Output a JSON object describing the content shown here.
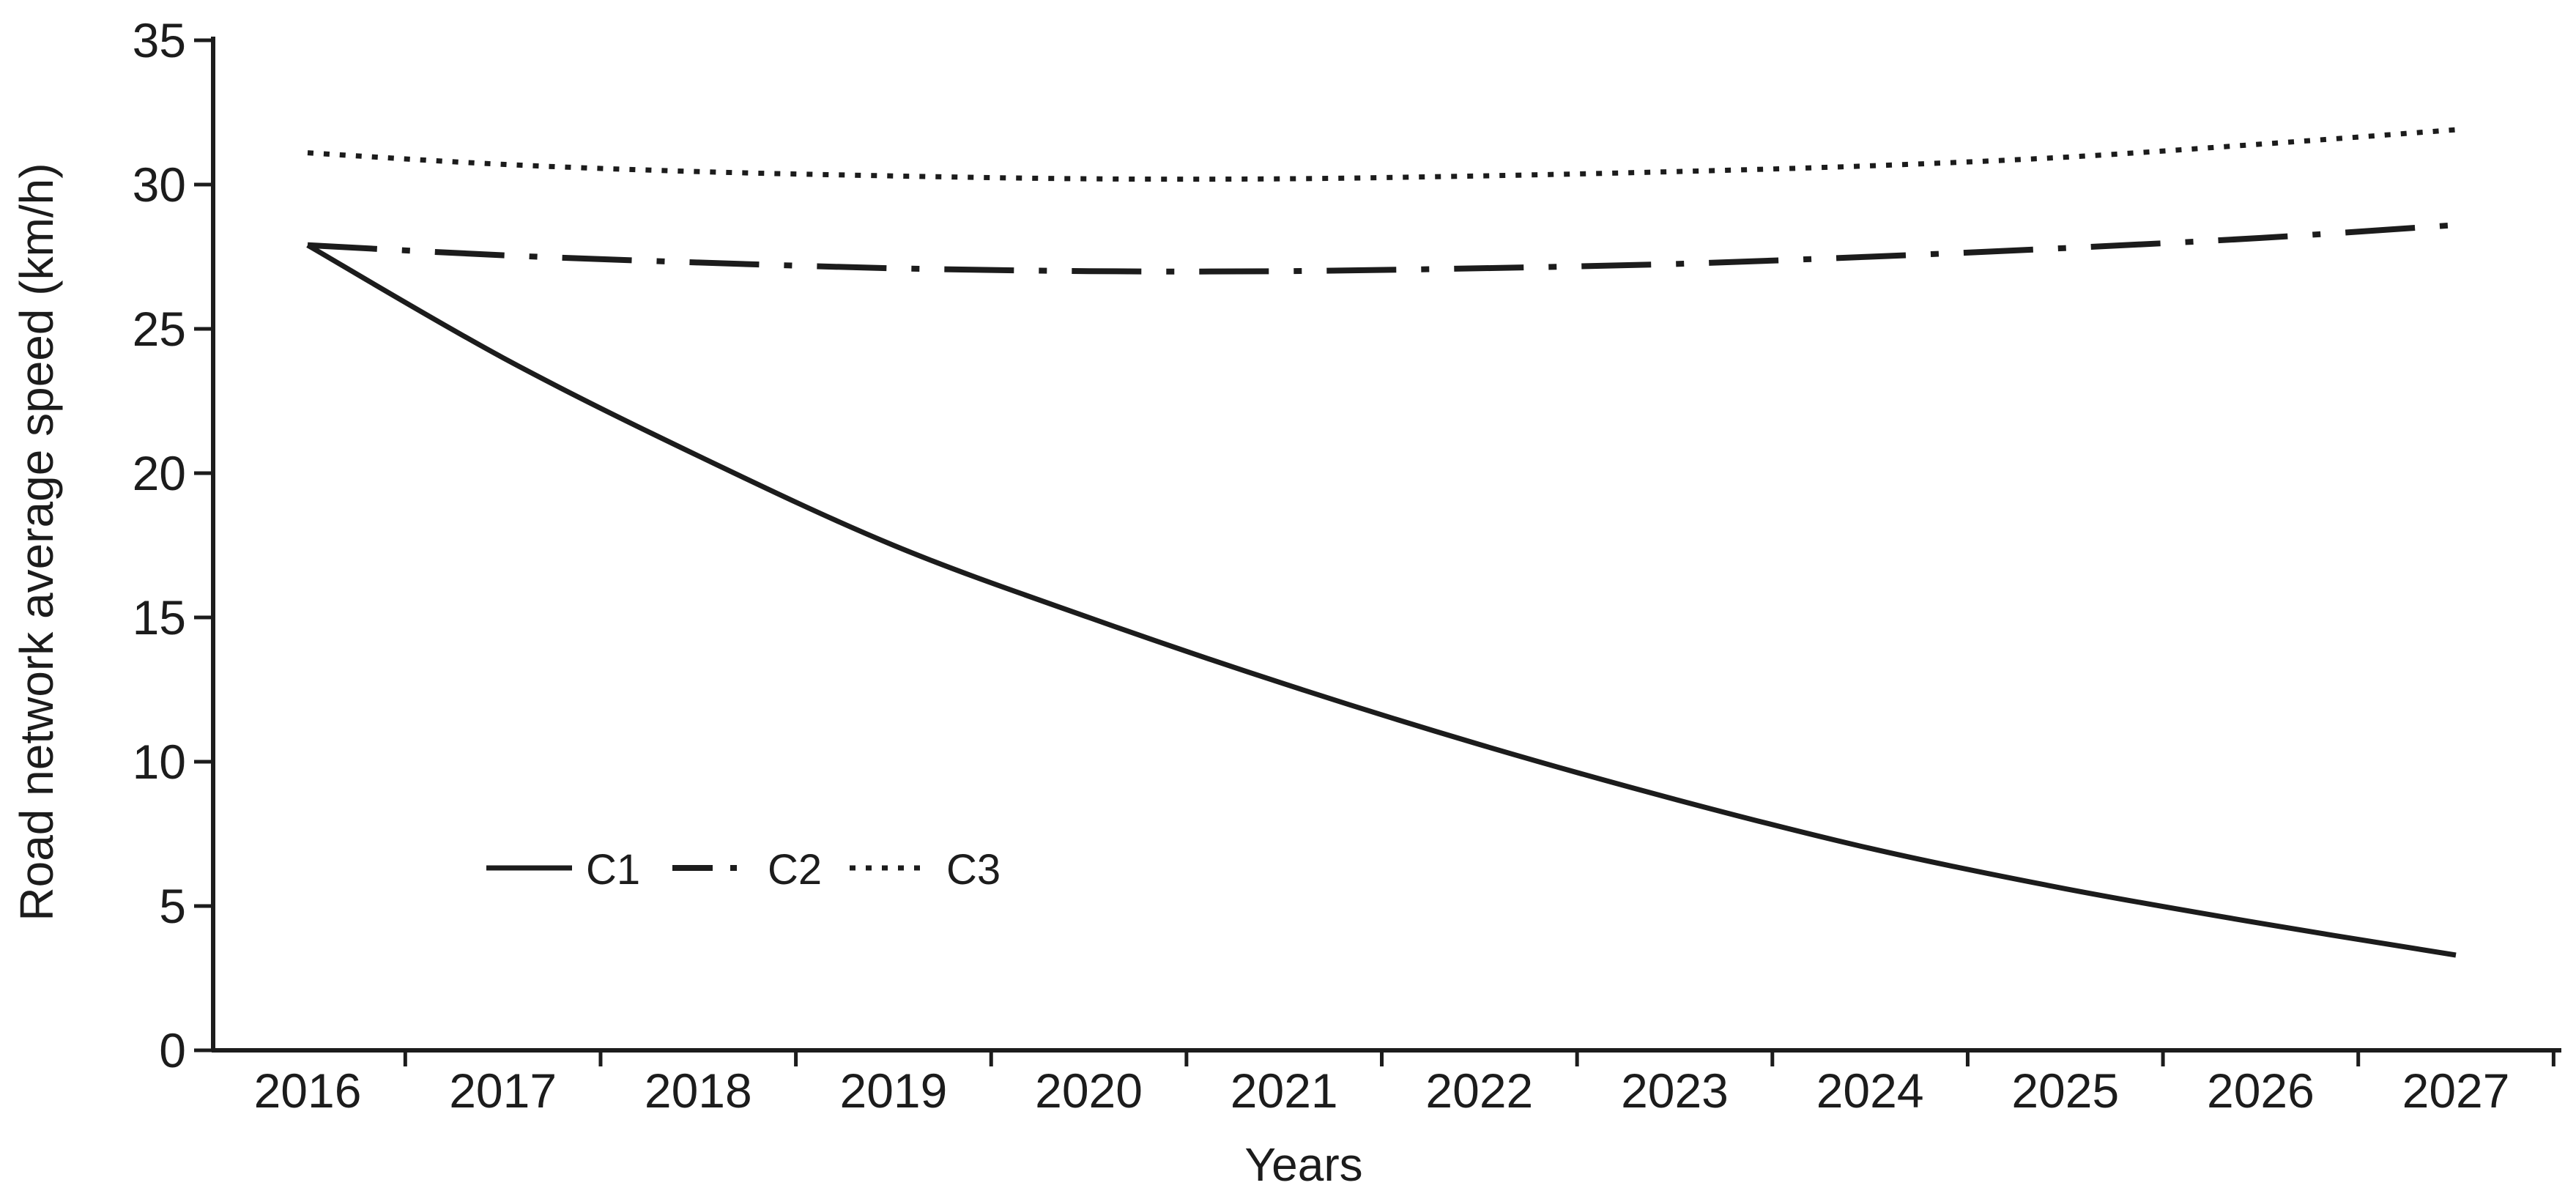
{
  "page": {
    "background": "#ffffff"
  },
  "chart_data": {
    "type": "line",
    "title": "",
    "xlabel": "Years",
    "ylabel": "Road network average speed (km/h)",
    "x": [
      2016,
      2017,
      2018,
      2019,
      2020,
      2021,
      2022,
      2023,
      2024,
      2025,
      2026,
      2027
    ],
    "xlim_years": [
      2016,
      2027
    ],
    "ylim": [
      0,
      35
    ],
    "y_ticks": [
      0,
      5,
      10,
      15,
      20,
      25,
      30,
      35
    ],
    "grid": false,
    "line_color": "#1c1c1c",
    "series": [
      {
        "name": "C1",
        "style": "solid",
        "color": "#1c1c1c",
        "values": [
          27.9,
          24.0,
          20.6,
          17.5,
          15.0,
          12.7,
          10.6,
          8.7,
          7.0,
          5.6,
          4.4,
          3.3
        ]
      },
      {
        "name": "C2",
        "style": "dash-dot",
        "color": "#1c1c1c",
        "values": [
          27.9,
          27.55,
          27.3,
          27.1,
          27.0,
          27.0,
          27.1,
          27.25,
          27.5,
          27.8,
          28.15,
          28.6
        ]
      },
      {
        "name": "C3",
        "style": "dotted",
        "color": "#1c1c1c",
        "values": [
          31.1,
          30.7,
          30.45,
          30.3,
          30.2,
          30.2,
          30.3,
          30.45,
          30.65,
          30.95,
          31.4,
          31.9
        ]
      }
    ],
    "legend": {
      "position": "inside-lower-left",
      "labels": [
        "C1",
        "C2",
        "C3"
      ]
    }
  }
}
